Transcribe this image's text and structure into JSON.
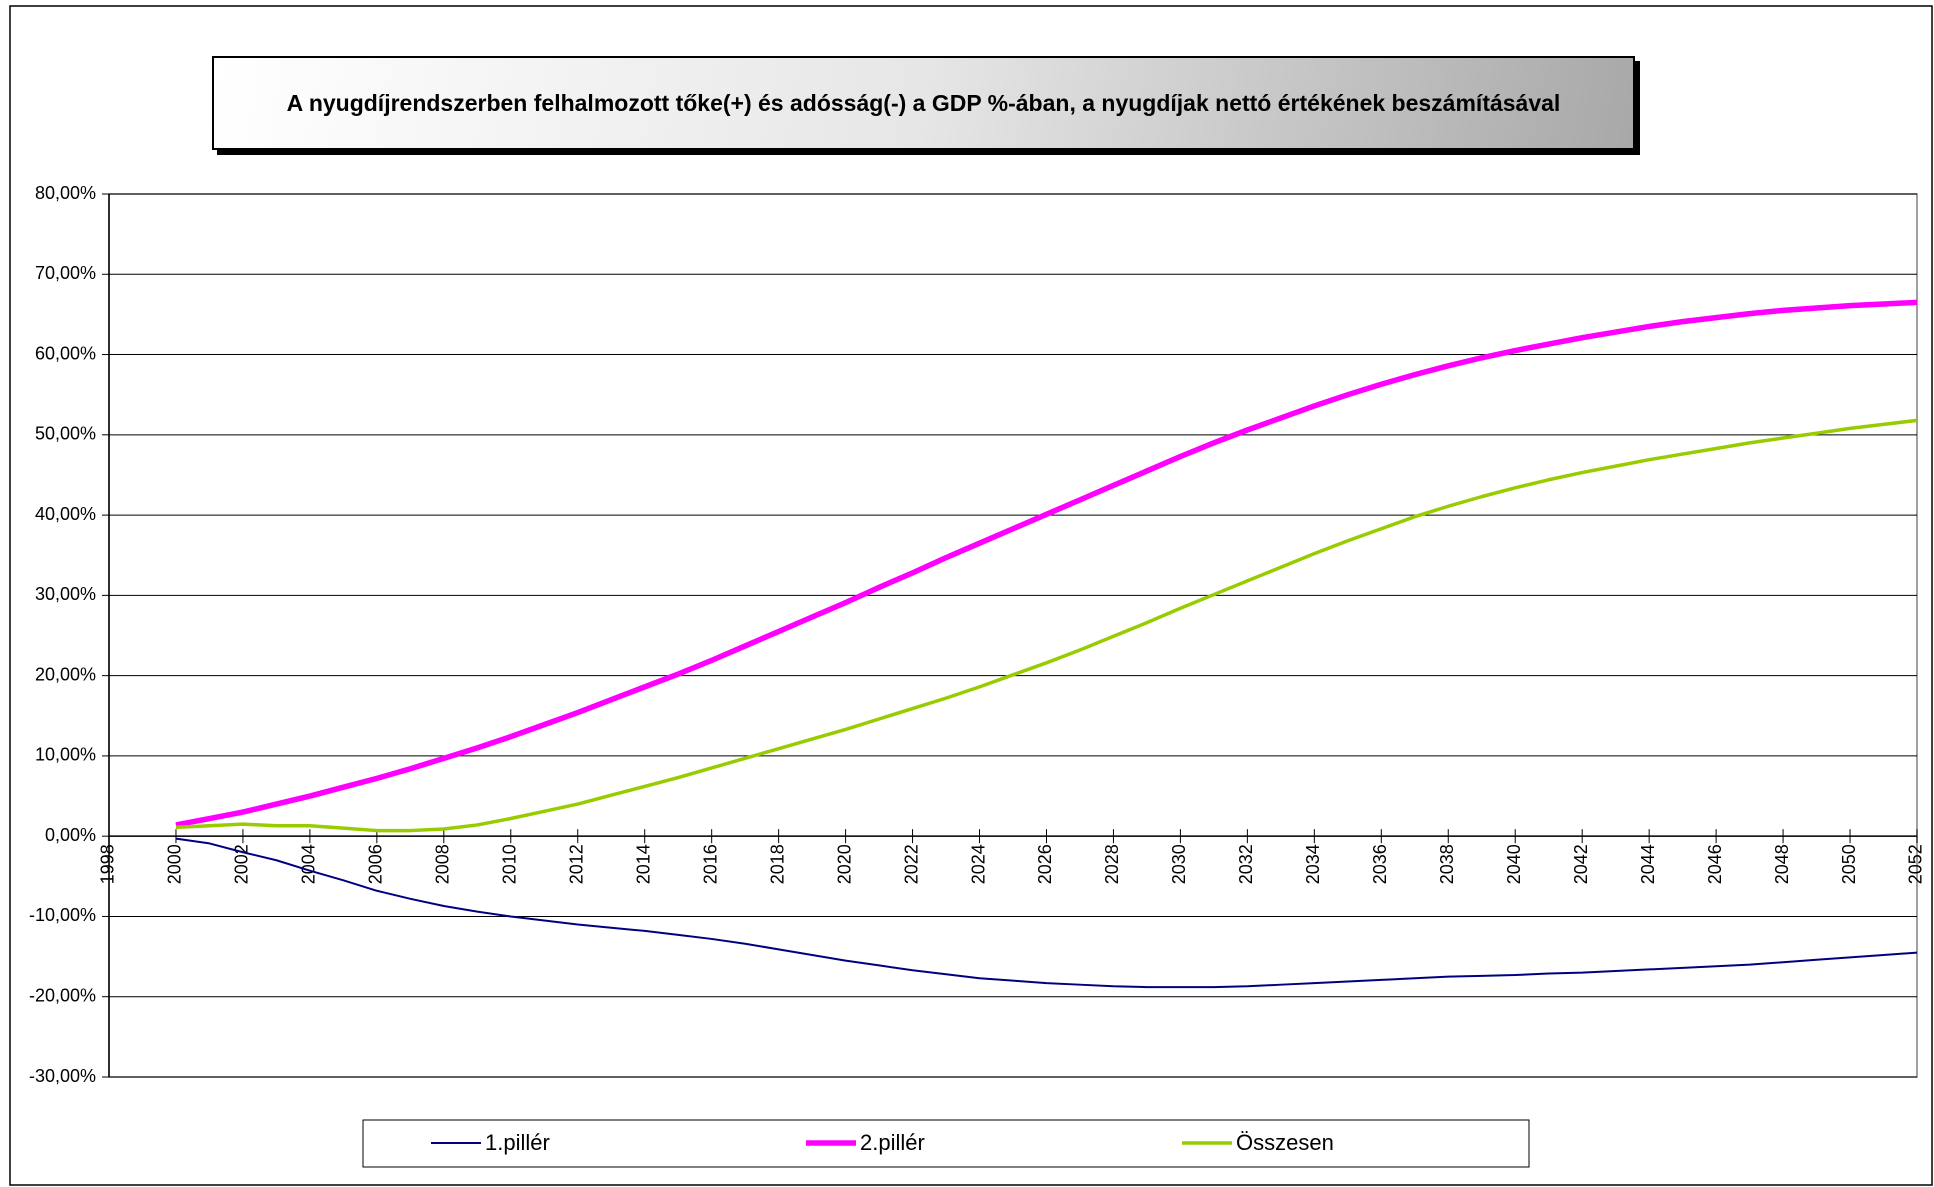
{
  "chart_data": {
    "type": "line",
    "title": "A nyugdíjrendszerben felhalmozott tőke(+) és adósság(-) a GDP %-ában, a nyugdíjak nettó értékének beszámításával",
    "x": [
      2000,
      2001,
      2002,
      2003,
      2004,
      2005,
      2006,
      2007,
      2008,
      2009,
      2010,
      2011,
      2012,
      2013,
      2014,
      2015,
      2016,
      2017,
      2018,
      2019,
      2020,
      2021,
      2022,
      2023,
      2024,
      2025,
      2026,
      2027,
      2028,
      2029,
      2030,
      2031,
      2032,
      2033,
      2034,
      2035,
      2036,
      2037,
      2038,
      2039,
      2040,
      2041,
      2042,
      2043,
      2044,
      2045,
      2046,
      2047,
      2048,
      2049,
      2050,
      2051,
      2052
    ],
    "series": [
      {
        "name": "1.pillér",
        "color": "#000080",
        "values": [
          -0.3,
          -0.9,
          -2,
          -3,
          -4.3,
          -5.5,
          -6.8,
          -7.8,
          -8.7,
          -9.4,
          -10,
          -10.5,
          -11,
          -11.4,
          -11.8,
          -12.3,
          -12.8,
          -13.4,
          -14.1,
          -14.8,
          -15.5,
          -16.1,
          -16.7,
          -17.2,
          -17.7,
          -18,
          -18.3,
          -18.5,
          -18.7,
          -18.8,
          -18.8,
          -18.8,
          -18.7,
          -18.5,
          -18.3,
          -18.1,
          -17.9,
          -17.7,
          -17.5,
          -17.4,
          -17.3,
          -17.1,
          -17,
          -16.8,
          -16.6,
          -16.4,
          -16.2,
          -16,
          -15.7,
          -15.4,
          -15.1,
          -14.8,
          -14.5
        ]
      },
      {
        "name": "2.pillér",
        "color": "#ff00ff",
        "values": [
          1.4,
          2.2,
          3,
          4,
          5,
          6.1,
          7.2,
          8.4,
          9.7,
          11,
          12.4,
          13.9,
          15.4,
          17,
          18.6,
          20.2,
          21.9,
          23.7,
          25.5,
          27.3,
          29.1,
          31,
          32.8,
          34.7,
          36.5,
          38.3,
          40.1,
          41.9,
          43.7,
          45.5,
          47.3,
          49,
          50.6,
          52.1,
          53.6,
          55,
          56.3,
          57.5,
          58.6,
          59.6,
          60.5,
          61.3,
          62.1,
          62.8,
          63.5,
          64.1,
          64.6,
          65.1,
          65.5,
          65.8,
          66.1,
          66.3,
          66.5
        ]
      },
      {
        "name": "Összesen",
        "color": "#99cc00",
        "values": [
          1.1,
          1.3,
          1.5,
          1.3,
          1.3,
          1,
          0.7,
          0.7,
          0.9,
          1.4,
          2.2,
          3.1,
          4,
          5.1,
          6.2,
          7.3,
          8.5,
          9.7,
          10.9,
          12.1,
          13.3,
          14.6,
          15.9,
          17.2,
          18.6,
          20.1,
          21.6,
          23.2,
          24.9,
          26.6,
          28.4,
          30.1,
          31.8,
          33.5,
          35.2,
          36.8,
          38.3,
          39.8,
          41.1,
          42.3,
          43.4,
          44.4,
          45.3,
          46.1,
          46.9,
          47.6,
          48.3,
          49,
          49.6,
          50.2,
          50.8,
          51.3,
          51.8
        ]
      }
    ],
    "xlim": [
      1998,
      2052
    ],
    "xticks": [
      1998,
      2000,
      2002,
      2004,
      2006,
      2008,
      2010,
      2012,
      2014,
      2016,
      2018,
      2020,
      2022,
      2024,
      2026,
      2028,
      2030,
      2032,
      2034,
      2036,
      2038,
      2040,
      2042,
      2044,
      2046,
      2048,
      2050,
      2052
    ],
    "ylim": [
      -30,
      80
    ],
    "yticks": [
      {
        "value": -30,
        "label": "-30,00%"
      },
      {
        "value": -20,
        "label": "-20,00%"
      },
      {
        "value": -10,
        "label": "-10,00%"
      },
      {
        "value": 0,
        "label": "0,00%"
      },
      {
        "value": 10,
        "label": "10,00%"
      },
      {
        "value": 20,
        "label": "20,00%"
      },
      {
        "value": 30,
        "label": "30,00%"
      },
      {
        "value": 40,
        "label": "40,00%"
      },
      {
        "value": 50,
        "label": "50,00%"
      },
      {
        "value": 60,
        "label": "60,00%"
      },
      {
        "value": 70,
        "label": "70,00%"
      },
      {
        "value": 80,
        "label": "80,00%"
      }
    ],
    "grid": true,
    "legend": "bottom"
  }
}
